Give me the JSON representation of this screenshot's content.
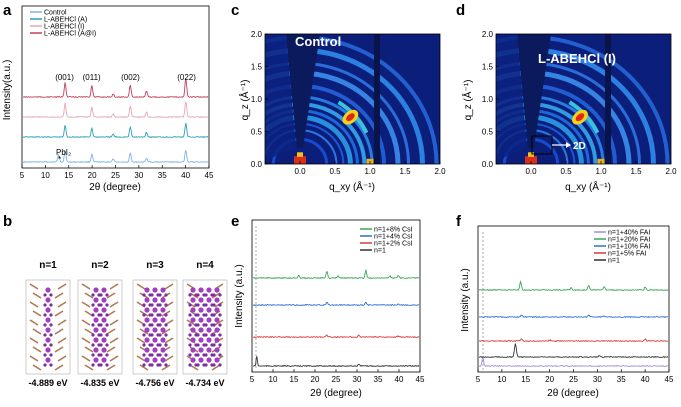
{
  "panels": {
    "a": "a",
    "b": "b",
    "c": "c",
    "d": "d",
    "e": "e",
    "f": "f"
  },
  "chart_data": [
    {
      "id": "a",
      "type": "line",
      "xlabel": "2θ (degree)",
      "ylabel": "Intensity(a.u.)",
      "xlim": [
        5,
        45
      ],
      "xticks": [
        5,
        10,
        15,
        20,
        25,
        30,
        35,
        40,
        45
      ],
      "series": [
        {
          "name": "Control",
          "color": "#7fb4e8"
        },
        {
          "name": "L-ABEHCl (A)",
          "color": "#2aa0b8"
        },
        {
          "name": "L-ABEHCl (I)",
          "color": "#e6a7b2"
        },
        {
          "name": "L-ABEHCl (A@I)",
          "color": "#c0405a"
        }
      ],
      "peaks": [
        {
          "label": "(001)",
          "x": 14.1
        },
        {
          "label": "(011)",
          "x": 19.9
        },
        {
          "label": "(002)",
          "x": 28.2
        },
        {
          "label": "(022)",
          "x": 40.2
        }
      ],
      "annotations": [
        {
          "label": "PbI₂",
          "marker": "*",
          "x": 12.7
        }
      ]
    },
    {
      "id": "c",
      "type": "heatmap",
      "title": "Control",
      "xlabel": "q_xy (Å⁻¹)",
      "ylabel": "q_z (Å⁻¹)",
      "xlim": [
        -0.5,
        2.0
      ],
      "ylim": [
        0.0,
        2.0
      ],
      "xticks": [
        "0.0",
        "0.5",
        "1.0",
        "1.5",
        "2.0"
      ],
      "yticks": [
        "0.0",
        "0.5",
        "1.0",
        "1.5",
        "2.0"
      ]
    },
    {
      "id": "d",
      "type": "heatmap",
      "title": "L-ABEHCl (I)",
      "annotation": "2D",
      "xlabel": "q_xy (Å⁻¹)",
      "ylabel": "q_z (Å⁻¹)",
      "xlim": [
        -0.5,
        2.0
      ],
      "ylim": [
        0.0,
        2.0
      ],
      "xticks": [
        "0.0",
        "0.5",
        "1.0",
        "1.5",
        "2.0"
      ],
      "yticks": [
        "0.0",
        "0.5",
        "1.0",
        "1.5",
        "2.0"
      ]
    },
    {
      "id": "e",
      "type": "line",
      "xlabel": "2θ (degree)",
      "ylabel": "Intensity (a.u.)",
      "xlim": [
        5,
        45
      ],
      "xticks": [
        5,
        10,
        15,
        20,
        25,
        30,
        35,
        40,
        45
      ],
      "series": [
        {
          "name": "n=1+8% CsI",
          "color": "#3aa55a"
        },
        {
          "name": "n=1+4% CsI",
          "color": "#2f6fcf"
        },
        {
          "name": "n=1+2% CsI",
          "color": "#d83a3a"
        },
        {
          "name": "n=1",
          "color": "#333333"
        }
      ]
    },
    {
      "id": "f",
      "type": "line",
      "xlabel": "2θ (degree)",
      "ylabel": "Intensity (a.u.)",
      "xlim": [
        5,
        45
      ],
      "xticks": [
        5,
        10,
        15,
        20,
        25,
        30,
        35,
        40,
        45
      ],
      "series": [
        {
          "name": "n=1+40% FAI",
          "color": "#a58fd6"
        },
        {
          "name": "n=1+20% FAI",
          "color": "#3aa55a"
        },
        {
          "name": "n=1+10% FAI",
          "color": "#2f6fcf"
        },
        {
          "name": "n=1+5%  FAI",
          "color": "#d83a3a"
        },
        {
          "name": "n=1",
          "color": "#333333"
        }
      ]
    }
  ],
  "structures": {
    "labels": [
      "n=1",
      "n=2",
      "n=3",
      "n=4"
    ],
    "energies": [
      "-4.889 eV",
      "-4.835 eV",
      "-4.756 eV",
      "-4.734 eV"
    ]
  }
}
